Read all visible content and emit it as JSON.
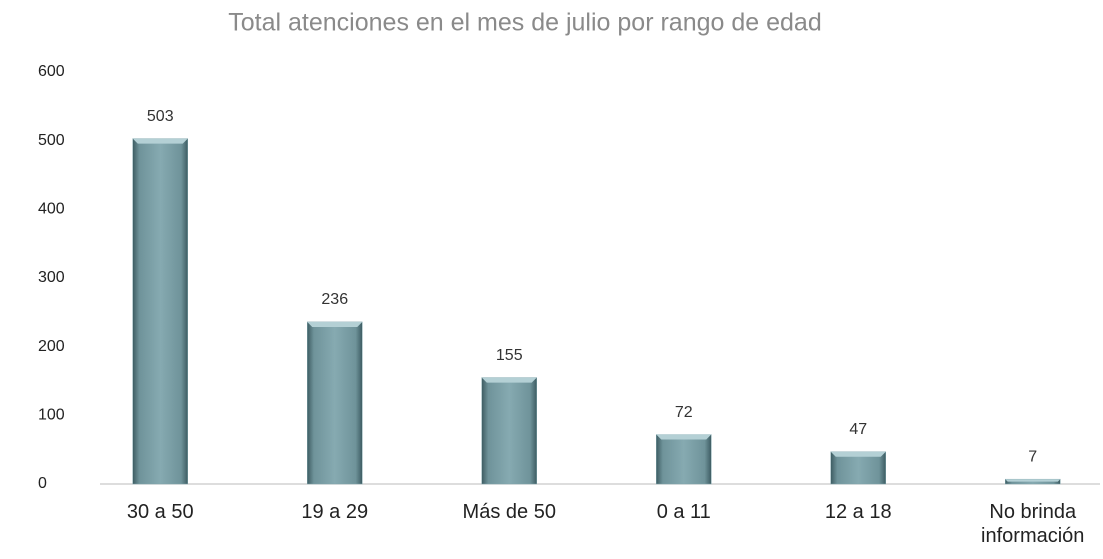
{
  "chart_data": {
    "type": "bar",
    "title": "Total atenciones en el mes de julio  por rango de edad",
    "categories": [
      "30 a 50",
      "19 a 29",
      "Más de 50",
      "0 a 11",
      "12 a 18",
      "No brinda información"
    ],
    "values": [
      503,
      236,
      155,
      72,
      47,
      7
    ],
    "color": "#7fa3aa",
    "ylim": [
      0,
      600
    ],
    "yticks": [
      0,
      100,
      200,
      300,
      400,
      500,
      600
    ],
    "grid": false
  }
}
